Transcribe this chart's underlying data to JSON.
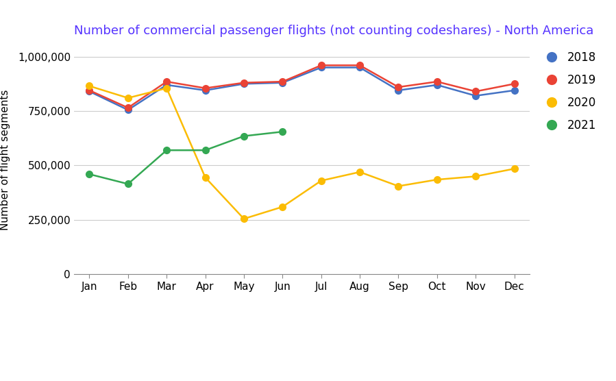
{
  "title": "Number of commercial passenger flights (not counting codeshares) - North America",
  "ylabel": "Number of flight segments",
  "months": [
    "Jan",
    "Feb",
    "Mar",
    "Apr",
    "May",
    "Jun",
    "Jul",
    "Aug",
    "Sep",
    "Oct",
    "Nov",
    "Dec"
  ],
  "series_order": [
    "2018",
    "2019",
    "2020",
    "2021"
  ],
  "series": {
    "2018": {
      "color": "#4472c4",
      "values": [
        840000,
        755000,
        870000,
        845000,
        875000,
        880000,
        950000,
        950000,
        845000,
        870000,
        820000,
        845000
      ]
    },
    "2019": {
      "color": "#ea4335",
      "values": [
        845000,
        765000,
        885000,
        855000,
        880000,
        885000,
        960000,
        960000,
        860000,
        885000,
        840000,
        875000
      ]
    },
    "2020": {
      "color": "#fbbc04",
      "values": [
        865000,
        810000,
        855000,
        445000,
        255000,
        310000,
        430000,
        470000,
        405000,
        435000,
        450000,
        485000
      ]
    },
    "2021": {
      "color": "#34a853",
      "values": [
        460000,
        415000,
        570000,
        570000,
        635000,
        655000,
        null,
        null,
        null,
        null,
        null,
        null
      ]
    }
  },
  "ylim": [
    0,
    1050000
  ],
  "yticks": [
    0,
    250000,
    500000,
    750000,
    1000000
  ],
  "ytick_labels": [
    "0",
    "250,000",
    "500,000",
    "750,000",
    "1,000,000"
  ],
  "title_color": "#5533ff",
  "background_color": "#ffffff",
  "grid_color": "#cccccc",
  "marker_size": 7,
  "line_width": 1.8,
  "tick_fontsize": 11,
  "ylabel_fontsize": 11,
  "title_fontsize": 13,
  "legend_fontsize": 12,
  "legend_marker_size": 12
}
